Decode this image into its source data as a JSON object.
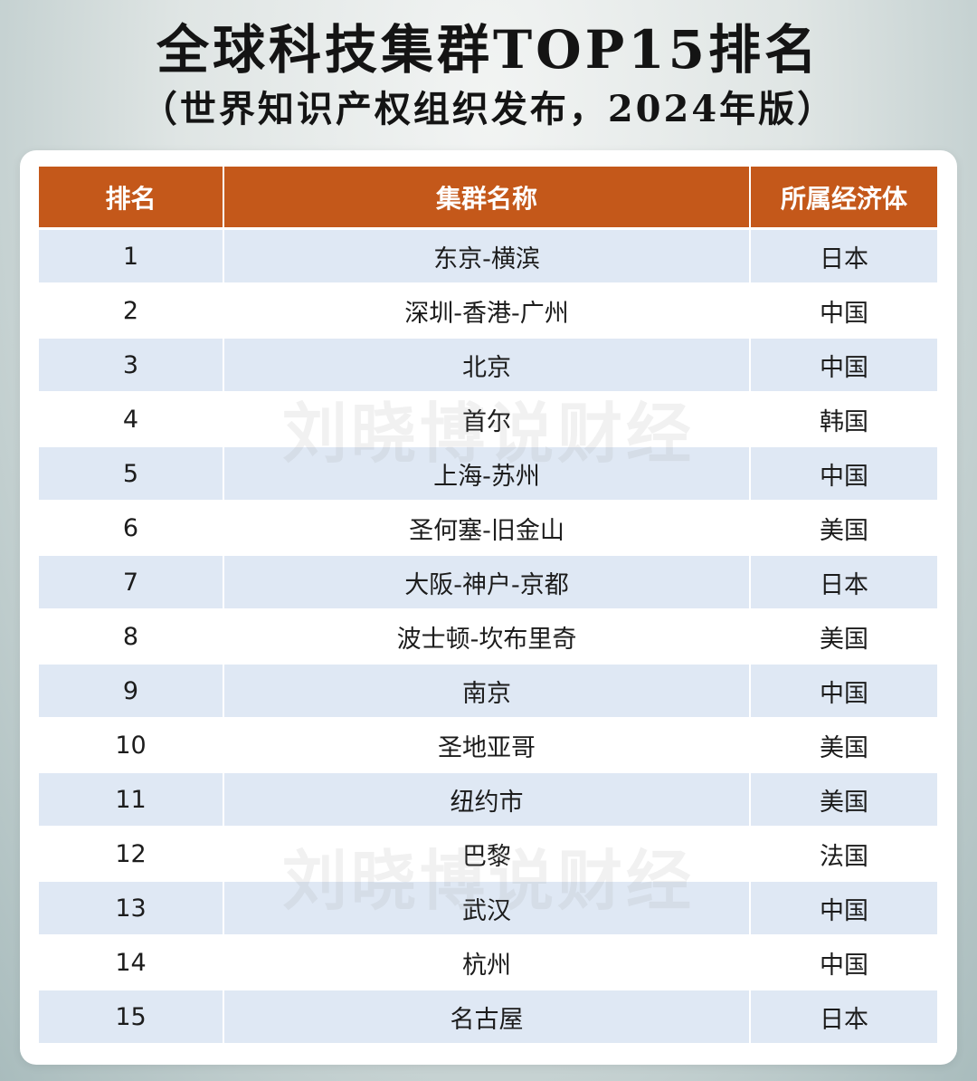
{
  "header": {
    "title": "全球科技集群TOP15排名",
    "subtitle": "（世界知识产权组织发布，2024年版）"
  },
  "watermark": "刘晓博说财经",
  "table": {
    "columns": [
      "排名",
      "集群名称",
      "所属经济体"
    ],
    "header_color": "#c4581a",
    "stripe_color": "#dfe8f4",
    "rows": [
      {
        "rank": "1",
        "cluster": "东京-横滨",
        "economy": "日本"
      },
      {
        "rank": "2",
        "cluster": "深圳-香港-广州",
        "economy": "中国"
      },
      {
        "rank": "3",
        "cluster": "北京",
        "economy": "中国"
      },
      {
        "rank": "4",
        "cluster": "首尔",
        "economy": "韩国"
      },
      {
        "rank": "5",
        "cluster": "上海-苏州",
        "economy": "中国"
      },
      {
        "rank": "6",
        "cluster": "圣何塞-旧金山",
        "economy": "美国"
      },
      {
        "rank": "7",
        "cluster": "大阪-神户-京都",
        "economy": "日本"
      },
      {
        "rank": "8",
        "cluster": "波士顿-坎布里奇",
        "economy": "美国"
      },
      {
        "rank": "9",
        "cluster": "南京",
        "economy": "中国"
      },
      {
        "rank": "10",
        "cluster": "圣地亚哥",
        "economy": "美国"
      },
      {
        "rank": "11",
        "cluster": "纽约市",
        "economy": "美国"
      },
      {
        "rank": "12",
        "cluster": "巴黎",
        "economy": "法国"
      },
      {
        "rank": "13",
        "cluster": "武汉",
        "economy": "中国"
      },
      {
        "rank": "14",
        "cluster": "杭州",
        "economy": "中国"
      },
      {
        "rank": "15",
        "cluster": "名古屋",
        "economy": "日本"
      }
    ]
  }
}
